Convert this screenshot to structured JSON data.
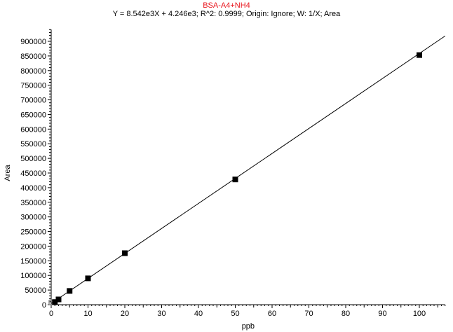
{
  "chart_data": {
    "type": "scatter",
    "title": "BSA-A4+NH4",
    "subtitle": "Y = 8.542e3X + 4.246e3; R^2: 0.9999; Origin: Ignore; W: 1/X; Area",
    "xlabel": "ppb",
    "ylabel": "Area",
    "xlim": [
      0,
      107
    ],
    "ylim": [
      0,
      940000
    ],
    "x_ticks": [
      0,
      10,
      20,
      30,
      40,
      50,
      60,
      70,
      80,
      90,
      100
    ],
    "y_ticks": [
      0,
      50000,
      100000,
      150000,
      200000,
      250000,
      300000,
      350000,
      400000,
      450000,
      500000,
      550000,
      600000,
      650000,
      700000,
      750000,
      800000,
      850000,
      900000
    ],
    "grid": false,
    "fit": {
      "slope": 8542,
      "intercept": 4246
    },
    "points": [
      {
        "x": 0,
        "y": 0,
        "excluded": true
      },
      {
        "x": 1,
        "y": 9000
      },
      {
        "x": 2,
        "y": 18000
      },
      {
        "x": 5,
        "y": 47000
      },
      {
        "x": 10,
        "y": 90000
      },
      {
        "x": 20,
        "y": 176000
      },
      {
        "x": 50,
        "y": 428000
      },
      {
        "x": 100,
        "y": 853000
      }
    ],
    "colors": {
      "title": "#e8141c",
      "marker": "#000000",
      "excluded_marker": "#888888",
      "line": "#000000"
    }
  }
}
